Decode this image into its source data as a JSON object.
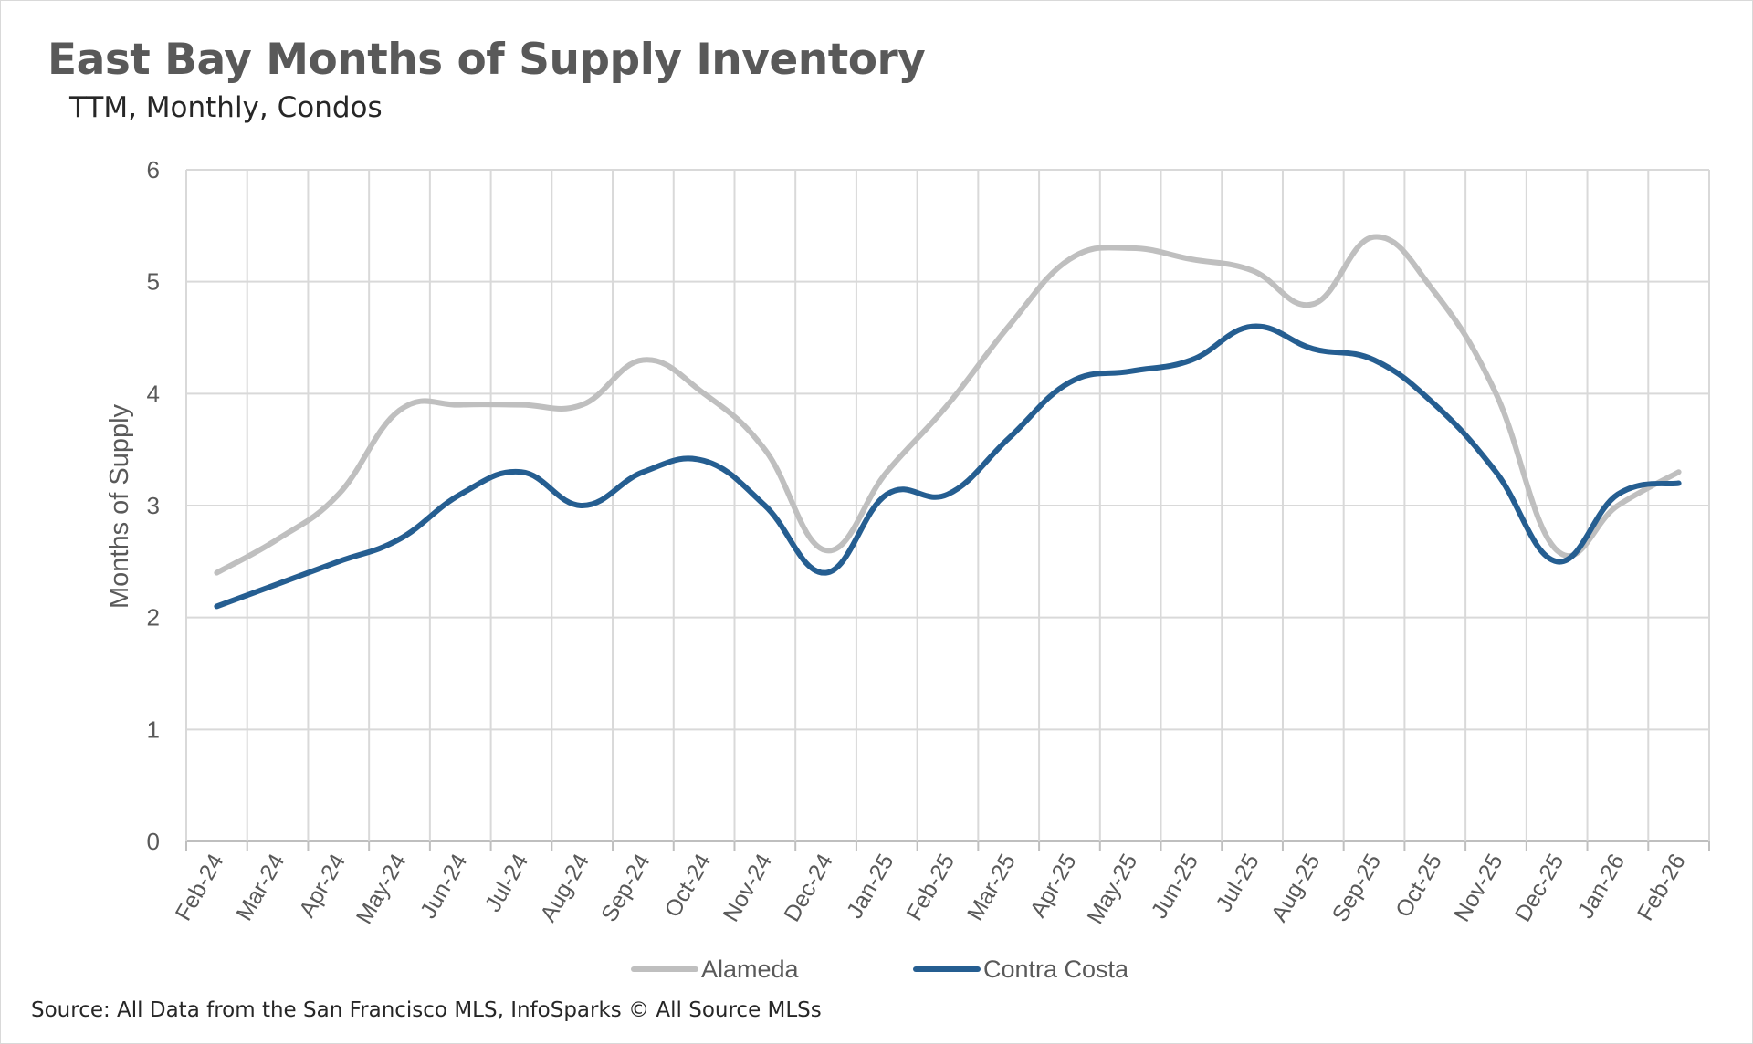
{
  "title": "East Bay Months of Supply Inventory",
  "subtitle": "TTM, Monthly, Condos",
  "source": "Source: All Data from the San Francisco MLS, InfoSparks © All Source MLSs",
  "colors": {
    "alameda": "#bfbfbf",
    "contra_costa": "#255e91",
    "grid": "#d9d9d9",
    "axis": "#bfbfbf"
  },
  "chart_data": {
    "type": "line",
    "ylabel": "Months of Supply",
    "ylim": [
      0,
      6
    ],
    "yticks": [
      0,
      1,
      2,
      3,
      4,
      5,
      6
    ],
    "grid": true,
    "legend_position": "bottom",
    "categories": [
      "Feb-24",
      "Mar-24",
      "Apr-24",
      "May-24",
      "Jun-24",
      "Jul-24",
      "Aug-24",
      "Sep-24",
      "Oct-24",
      "Nov-24",
      "Dec-24",
      "Jan-25",
      "Feb-25",
      "Mar-25",
      "Apr-25",
      "May-25",
      "Jun-25",
      "Jul-25",
      "Aug-25",
      "Sep-25",
      "Oct-25",
      "Nov-25",
      "Dec-25",
      "Jan-26",
      "Feb-26"
    ],
    "series": [
      {
        "name": "Alameda",
        "color": "#bfbfbf",
        "values": [
          2.4,
          2.7,
          3.1,
          3.85,
          3.9,
          3.9,
          3.9,
          4.3,
          4.0,
          3.5,
          2.6,
          3.3,
          3.9,
          4.6,
          5.2,
          5.3,
          5.2,
          5.1,
          4.8,
          5.4,
          4.9,
          4.0,
          2.6,
          3.0,
          3.3
        ]
      },
      {
        "name": "Contra Costa",
        "color": "#255e91",
        "values": [
          2.1,
          2.3,
          2.5,
          2.7,
          3.1,
          3.3,
          3.0,
          3.3,
          3.4,
          3.0,
          2.4,
          3.1,
          3.1,
          3.6,
          4.1,
          4.2,
          4.3,
          4.6,
          4.4,
          4.3,
          3.9,
          3.3,
          2.5,
          3.1,
          3.2
        ]
      }
    ]
  }
}
